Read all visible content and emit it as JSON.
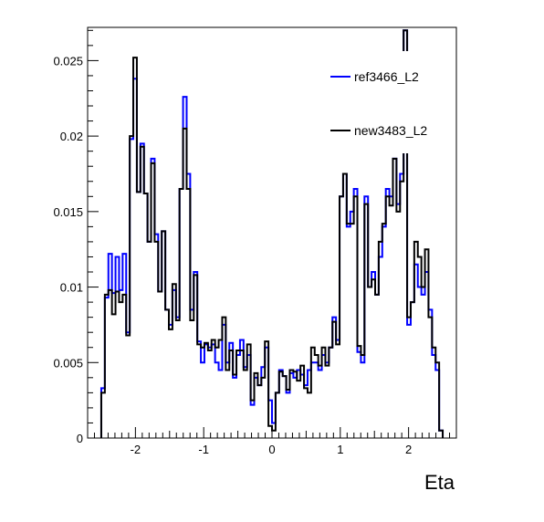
{
  "chart_data": {
    "type": "line",
    "title": "",
    "xlabel": "Eta",
    "ylabel": "",
    "xlim": [
      -2.7,
      2.7
    ],
    "ylim": [
      0,
      0.0272
    ],
    "x_ticks": [
      -2,
      -1,
      0,
      1,
      2
    ],
    "x_tick_labels": [
      "-2",
      "-1",
      "0",
      "1",
      "2"
    ],
    "y_ticks": [
      0,
      0.005,
      0.01,
      0.015,
      0.02,
      0.025
    ],
    "y_tick_labels": [
      "0",
      "0.005",
      "0.01",
      "0.015",
      "0.02",
      "0.025"
    ],
    "grid": false,
    "legend_position": "top-right",
    "bin_edges": [
      -2.5,
      2.5
    ],
    "series": [
      {
        "name": "ref3466_L2",
        "color": "#0000ff",
        "values": [
          0.0033,
          0.0093,
          0.0122,
          0.0096,
          0.012,
          0.0098,
          0.0122,
          0.007,
          0.0198,
          0.0238,
          0.0163,
          0.0195,
          0.0162,
          0.013,
          0.0185,
          0.0135,
          0.0097,
          0.0137,
          0.0085,
          0.0075,
          0.0098,
          0.008,
          0.0165,
          0.0226,
          0.0175,
          0.0085,
          0.011,
          0.0064,
          0.005,
          0.0062,
          0.006,
          0.0062,
          0.005,
          0.0045,
          0.0075,
          0.005,
          0.0063,
          0.004,
          0.0055,
          0.0065,
          0.0047,
          0.0055,
          0.0022,
          0.004,
          0.0035,
          0.0047,
          0.006,
          0.0025,
          0.001,
          0.003,
          0.0045,
          0.0041,
          0.003,
          0.0043,
          0.004,
          0.0045,
          0.0042,
          0.0035,
          0.0045,
          0.005,
          0.005,
          0.0045,
          0.0055,
          0.005,
          0.006,
          0.008,
          0.0065,
          0.016,
          0.0175,
          0.014,
          0.015,
          0.0165,
          0.0057,
          0.005,
          0.016,
          0.01,
          0.011,
          0.0095,
          0.012,
          0.014,
          0.0165,
          0.016,
          0.0185,
          0.0155,
          0.0175,
          0.027,
          0.0075,
          0.009,
          0.0115,
          0.01,
          0.0095,
          0.011,
          0.0085,
          0.0055,
          0.0045,
          0.0005
        ]
      },
      {
        "name": "new3483_L2",
        "color": "#000000",
        "values": [
          0.003,
          0.0095,
          0.0098,
          0.0082,
          0.0097,
          0.009,
          0.0095,
          0.0068,
          0.02,
          0.0252,
          0.0163,
          0.0193,
          0.0162,
          0.013,
          0.0182,
          0.013,
          0.0097,
          0.0137,
          0.0085,
          0.0072,
          0.0102,
          0.0078,
          0.0165,
          0.0205,
          0.0165,
          0.0078,
          0.0108,
          0.0062,
          0.006,
          0.0063,
          0.0058,
          0.0065,
          0.006,
          0.0065,
          0.008,
          0.0045,
          0.0058,
          0.0042,
          0.0058,
          0.0058,
          0.0045,
          0.0062,
          0.0025,
          0.0043,
          0.0035,
          0.004,
          0.0064,
          0.0008,
          0.0005,
          0.003,
          0.0044,
          0.0041,
          0.0032,
          0.0045,
          0.0044,
          0.0038,
          0.0048,
          0.0033,
          0.003,
          0.006,
          0.0055,
          0.0048,
          0.006,
          0.0048,
          0.006,
          0.0077,
          0.0062,
          0.016,
          0.0175,
          0.0142,
          0.0142,
          0.016,
          0.0061,
          0.0055,
          0.0155,
          0.01,
          0.0105,
          0.0095,
          0.013,
          0.0142,
          0.016,
          0.0154,
          0.0185,
          0.015,
          0.017,
          0.027,
          0.008,
          0.009,
          0.013,
          0.012,
          0.01,
          0.0125,
          0.008,
          0.006,
          0.005,
          0.0005
        ]
      }
    ]
  }
}
